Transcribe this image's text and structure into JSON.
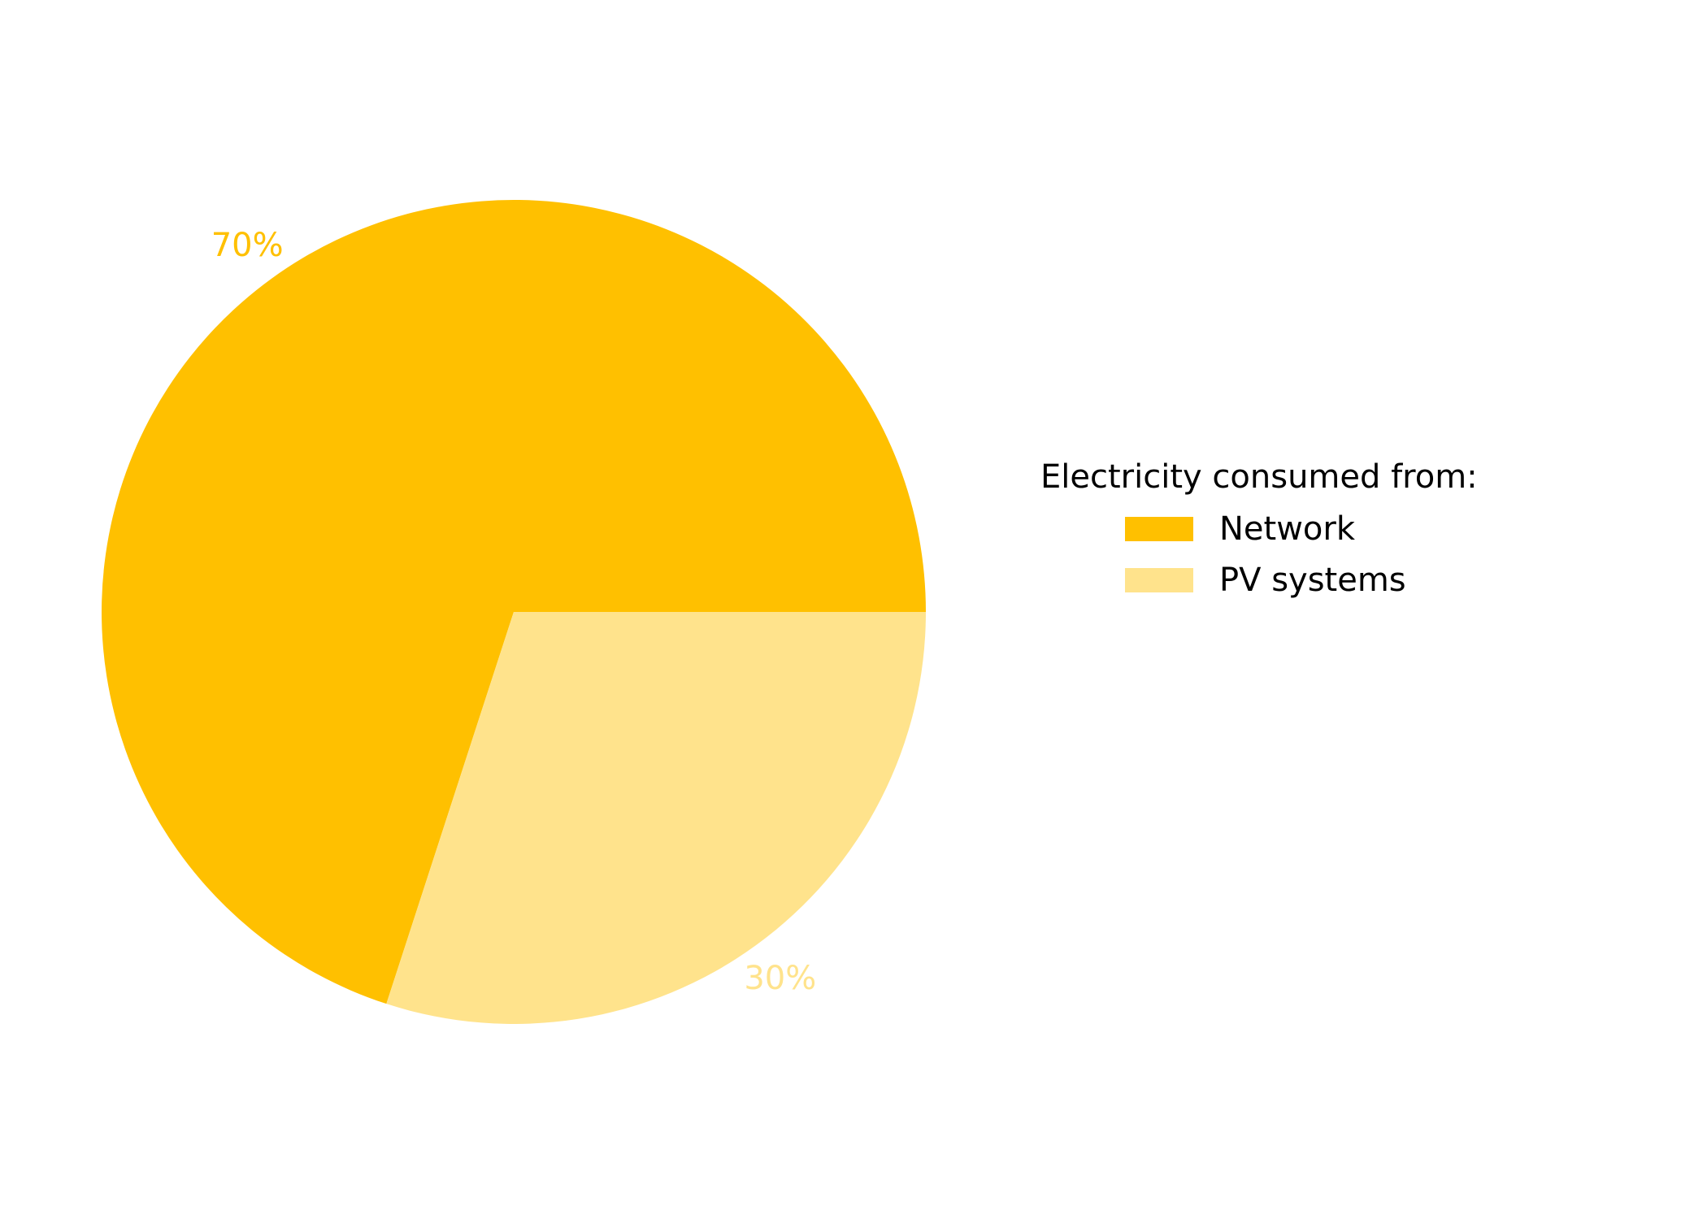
{
  "chart_data": {
    "type": "pie",
    "title": "",
    "slices": [
      {
        "label": "Network",
        "value": 70,
        "value_label": "70%",
        "color": "#FFC000"
      },
      {
        "label": "PV systems",
        "value": 30,
        "value_label": "30%",
        "color": "#FFE38C"
      }
    ],
    "start": "3 o'clock",
    "direction": "counterclockwise",
    "legend": {
      "title": "Electricity consumed from:",
      "placement": "right"
    }
  }
}
